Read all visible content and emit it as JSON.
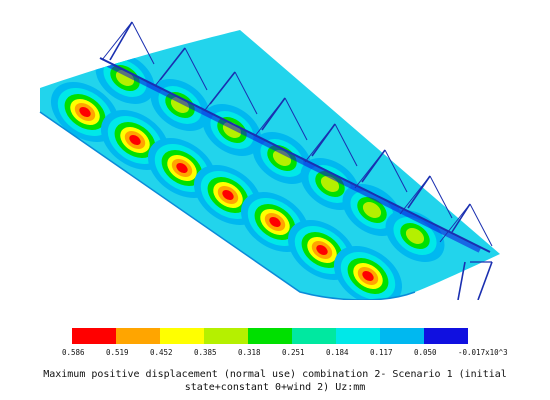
{
  "legend": {
    "colors": [
      "#ff0000",
      "#ffa500",
      "#ffff00",
      "#b5f000",
      "#00e000",
      "#00e8a0",
      "#00e8e8",
      "#00b8f0",
      "#1010e0"
    ],
    "labels": [
      "0.586",
      "0.519",
      "0.452",
      "0.385",
      "0.318",
      "0.251",
      "0.184",
      "0.117",
      "0.050",
      "-0.017x10^3"
    ]
  },
  "caption": {
    "line1": "Maximum positive displacement (normal use) combination 2- Scenario 1 (initial",
    "line2": "state+constant 0+wind 2) Uz:mm"
  },
  "colors": {
    "structure": "#1a2fb0",
    "base": "#20d8e8",
    "edge": "#0030c0"
  }
}
